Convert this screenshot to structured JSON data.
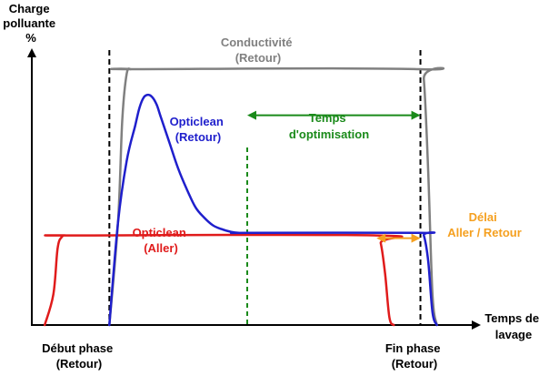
{
  "chart_data": {
    "type": "line",
    "title": "",
    "ylabel": "Charge polluante %",
    "ylabel_lines": [
      "Charge",
      "polluante",
      "%"
    ],
    "xlabel": "Temps de lavage",
    "xlabel_lines": [
      "Temps de",
      "lavage"
    ],
    "xlim": [
      0,
      100
    ],
    "ylim": [
      0,
      100
    ],
    "grid": false,
    "markers": [
      {
        "name": "debut",
        "x": 18,
        "lines": [
          "Début phase",
          "(Retour)"
        ],
        "color": "#000000"
      },
      {
        "name": "fin",
        "x": 90.2,
        "lines": [
          "Fin phase",
          "(Retour)"
        ],
        "color": "#000000"
      },
      {
        "name": "optim-start",
        "x": 50,
        "lines": [],
        "color": "#1a8a1a"
      }
    ],
    "series": [
      {
        "name": "Conductivité (Retour)",
        "lines": [
          "Conductivité",
          "(Retour)"
        ],
        "color": "#808080",
        "x": [
          18,
          20,
          21,
          22,
          23,
          24,
          90,
          91,
          92,
          93,
          94
        ],
        "y": [
          0,
          40,
          80,
          98,
          100,
          100,
          100,
          96,
          60,
          12,
          0
        ]
      },
      {
        "name": "Opticlean (Retour)",
        "lines": [
          "Opticlean",
          "(Retour)"
        ],
        "color": "#1f1fcc",
        "x": [
          18,
          20,
          22,
          24,
          25,
          26,
          27,
          28,
          29,
          30,
          32,
          34,
          36,
          38,
          40,
          42,
          44,
          46,
          48,
          50,
          90,
          91,
          92,
          93,
          94
        ],
        "y": [
          0,
          40,
          64,
          78,
          85,
          89,
          90,
          89,
          86,
          81,
          71,
          61,
          53,
          46,
          42,
          39,
          37.5,
          36.5,
          36,
          36,
          36,
          35,
          25,
          5,
          0
        ]
      },
      {
        "name": "Opticlean (Aller)",
        "lines": [
          "Opticlean",
          "(Aller)"
        ],
        "color": "#e01b1b",
        "x": [
          3,
          5,
          6,
          7,
          8,
          9,
          80,
          81,
          82,
          83,
          84
        ],
        "y": [
          0,
          12,
          30,
          34.5,
          35,
          35,
          35,
          32,
          20,
          3,
          0
        ]
      }
    ],
    "annotations": [
      {
        "name": "temps-optimisation",
        "lines": [
          "Temps",
          "d'optimisation"
        ],
        "color": "#1a8a1a",
        "x_from": 50,
        "x_to": 90.2,
        "y": 82
      },
      {
        "name": "delai-aller-retour",
        "lines": [
          "Délai",
          "Aller / Retour"
        ],
        "color": "#f5a020",
        "x_from": 80,
        "x_to": 90.2,
        "y": 35
      }
    ]
  }
}
